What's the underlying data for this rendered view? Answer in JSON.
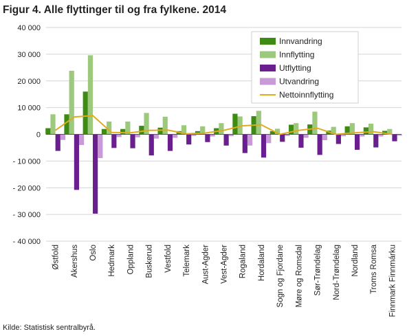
{
  "title": "Figur 4. Alle flyttinger til og fra fylkene. 2014",
  "source": "Kilde: Statistisk sentralbyrå.",
  "colors": {
    "Innvandring": "#3d8a14",
    "Innflytting": "#9dc97c",
    "Utflytting": "#6a1f8f",
    "Utvandring": "#c89ad8",
    "Nettoinnflytting": "#e0aa22",
    "gridline": "#d4d4d4",
    "zero_line": "#555555"
  },
  "chart_data": {
    "type": "bar",
    "categories": [
      "Østfold",
      "Akershus",
      "Oslo",
      "Hedmark",
      "Oppland",
      "Buskerud",
      "Vestfold",
      "Telemark",
      "Aust-Agder",
      "Vest-Agder",
      "Rogaland",
      "Hordaland",
      "Sogn og Fjordane",
      "Møre og Romsdal",
      "Sør-Trøndelag",
      "Nord-Trøndelag",
      "Nordland",
      "Troms Romsa",
      "Finnmark Finnmárku"
    ],
    "series": [
      {
        "name": "Innvandring",
        "type": "bar",
        "values": [
          2300,
          7500,
          16000,
          2000,
          2000,
          3200,
          2500,
          1200,
          1200,
          2300,
          7700,
          6800,
          1200,
          3600,
          3700,
          1400,
          3000,
          2600,
          1300
        ]
      },
      {
        "name": "Innflytting",
        "type": "bar",
        "values": [
          7500,
          23800,
          29600,
          4800,
          4800,
          8000,
          6600,
          3400,
          3000,
          4200,
          6700,
          8800,
          2100,
          4200,
          8500,
          2800,
          4200,
          4000,
          2000
        ]
      },
      {
        "name": "Utflytting",
        "type": "bar",
        "values": [
          -6200,
          -20800,
          -29700,
          -5100,
          -5200,
          -7900,
          -6200,
          -3800,
          -2900,
          -4200,
          -7000,
          -8700,
          -2800,
          -5000,
          -7700,
          -3600,
          -5800,
          -4900,
          -2600
        ]
      },
      {
        "name": "Utvandring",
        "type": "bar",
        "values": [
          -2100,
          -4000,
          -8900,
          -1000,
          -1100,
          -1600,
          -1300,
          -600,
          -800,
          -700,
          -4200,
          -3300,
          -600,
          -1300,
          -2200,
          -700,
          -800,
          -800,
          -500
        ]
      },
      {
        "name": "Nettoinnflytting",
        "type": "line",
        "values": [
          1500,
          6500,
          7000,
          700,
          600,
          1500,
          1600,
          200,
          500,
          1500,
          3200,
          3600,
          0,
          1500,
          2300,
          0,
          600,
          1000,
          0
        ]
      }
    ],
    "ylim": [
      -40000,
      40000
    ],
    "yticks": [
      -40000,
      -30000,
      -20000,
      -10000,
      0,
      10000,
      20000,
      30000,
      40000
    ],
    "ytick_labels": [
      "- 40 000",
      "- 30 000",
      "- 20 000",
      "- 10 000",
      "0",
      "10 000",
      "20 000",
      "30 000",
      "40 000"
    ],
    "grid": true,
    "legend_position": "top-right"
  }
}
